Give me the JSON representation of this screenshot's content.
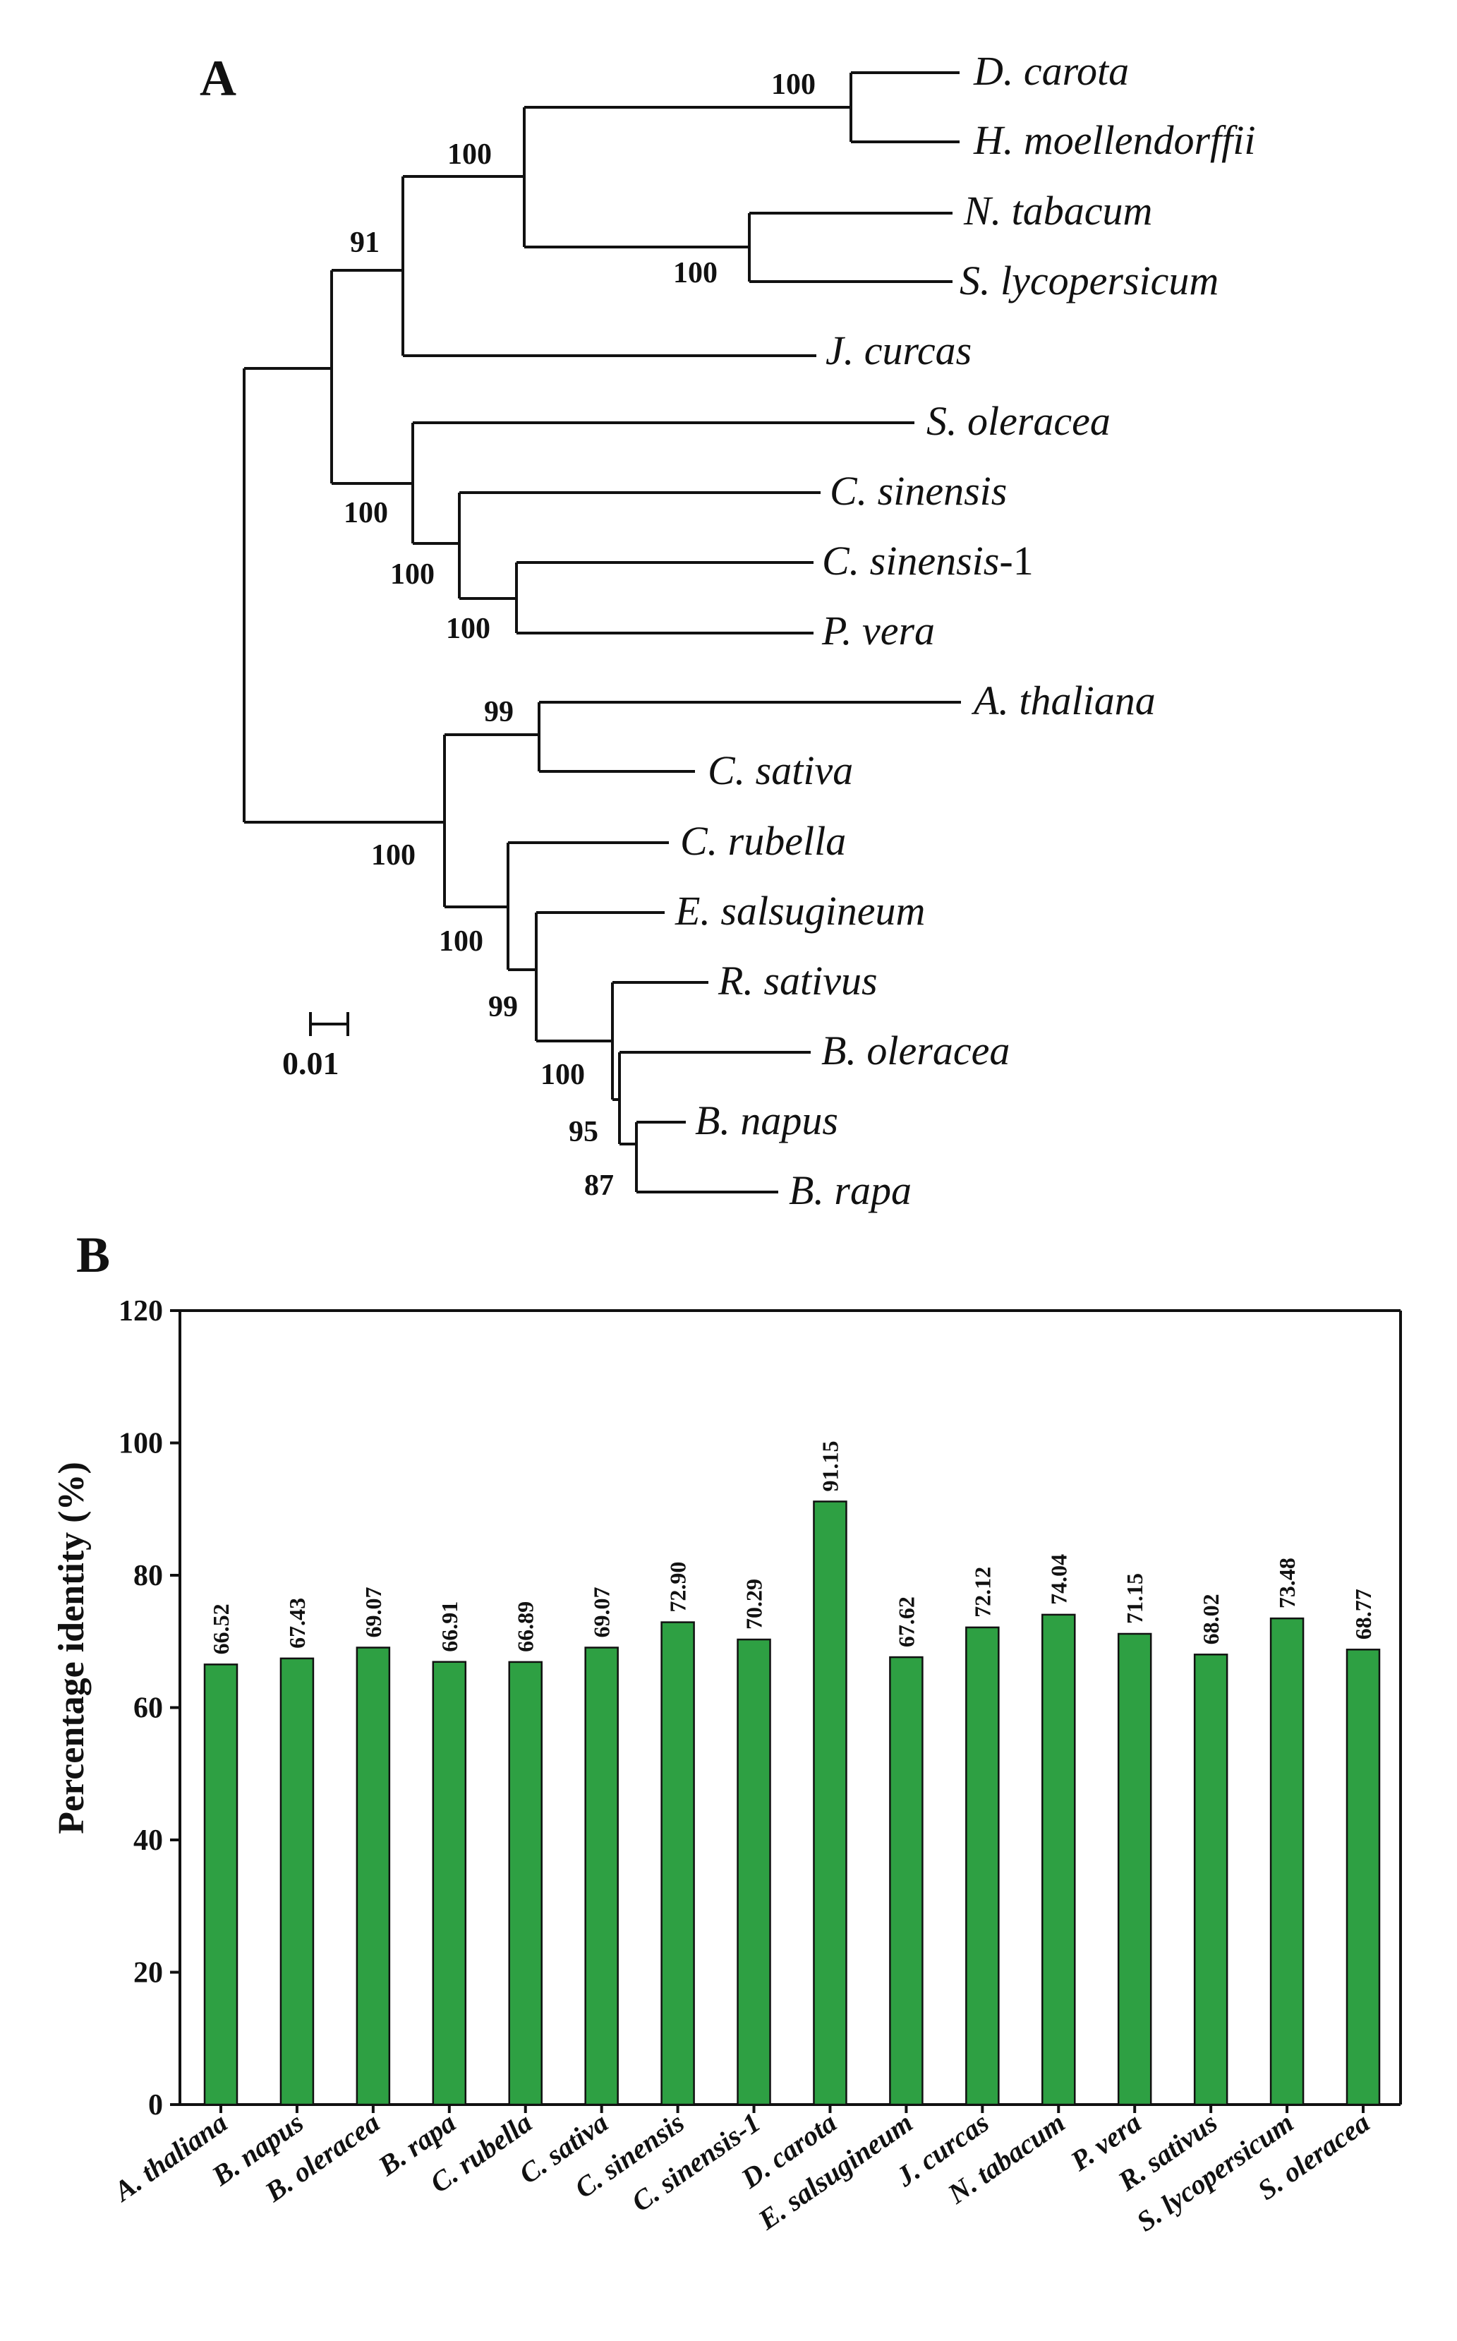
{
  "panel_a": {
    "label": "A",
    "scale_bar_label": "0.01",
    "taxa": [
      {
        "id": "dcar",
        "name": "D. carota",
        "suffix": ""
      },
      {
        "id": "hmoe",
        "name": "H. moellendorffii",
        "suffix": ""
      },
      {
        "id": "ntab",
        "name": "N.  tabacum",
        "suffix": ""
      },
      {
        "id": "slyc",
        "name": "S. lycopersicum",
        "suffix": ""
      },
      {
        "id": "jcur",
        "name": "J. curcas",
        "suffix": ""
      },
      {
        "id": "sole",
        "name": "S. oleracea",
        "suffix": ""
      },
      {
        "id": "csin",
        "name": "C. sinensis",
        "suffix": ""
      },
      {
        "id": "csin1",
        "name": "C. sinensis",
        "suffix": "-1"
      },
      {
        "id": "pver",
        "name": "P.  vera",
        "suffix": ""
      },
      {
        "id": "atha",
        "name": "A.  thaliana",
        "suffix": ""
      },
      {
        "id": "csat",
        "name": "C.  sativa",
        "suffix": ""
      },
      {
        "id": "crub",
        "name": "C. rubella",
        "suffix": ""
      },
      {
        "id": "esal",
        "name": "E. salsugineum",
        "suffix": ""
      },
      {
        "id": "rsat",
        "name": "R. sativus",
        "suffix": ""
      },
      {
        "id": "bole",
        "name": "B. oleracea",
        "suffix": ""
      },
      {
        "id": "bnap",
        "name": "B.  napus",
        "suffix": ""
      },
      {
        "id": "brap",
        "name": "B.  rapa",
        "suffix": ""
      }
    ],
    "bootstrap": [
      {
        "id": "n_dcar_hmoe",
        "value": "100"
      },
      {
        "id": "n_core",
        "value": "100"
      },
      {
        "id": "n_91",
        "value": "91"
      },
      {
        "id": "n_ntab_slyc",
        "value": "100"
      },
      {
        "id": "n_sole",
        "value": "100"
      },
      {
        "id": "n_csin",
        "value": "100"
      },
      {
        "id": "n_csin1_pver",
        "value": "100"
      },
      {
        "id": "n_atha_csat",
        "value": "99"
      },
      {
        "id": "n_bras",
        "value": "100"
      },
      {
        "id": "n_crub",
        "value": "100"
      },
      {
        "id": "n_esal",
        "value": "99"
      },
      {
        "id": "n_rsat",
        "value": "100"
      },
      {
        "id": "n_bole",
        "value": "95"
      },
      {
        "id": "n_bnap_brap",
        "value": "87"
      }
    ]
  },
  "panel_b": {
    "label": "B",
    "chart_data": {
      "type": "bar",
      "title": "",
      "xlabel": "",
      "ylabel": "Percentage identity (%)",
      "ylim": [
        0,
        120
      ],
      "yticks": [
        "0",
        "20",
        "40",
        "60",
        "80",
        "100",
        "120"
      ],
      "categories": [
        "A. thaliana",
        "B. napus",
        "B. oleracea",
        "B. rapa",
        "C. rubella",
        "C. sativa",
        "C. sinensis",
        "C. sinensis-1",
        "D. carota",
        "E. salsugineum",
        "J. curcas",
        "N. tabacum",
        "P. vera",
        "R. sativus",
        "S. lycopersicum",
        "S. oleracea"
      ],
      "values": [
        66.52,
        67.43,
        69.07,
        66.91,
        66.89,
        69.07,
        72.9,
        70.29,
        91.15,
        67.62,
        72.12,
        74.04,
        71.15,
        68.02,
        73.48,
        68.77
      ],
      "value_labels": [
        "66.52",
        "67.43",
        "69.07",
        "66.91",
        "66.89",
        "69.07",
        "72.90",
        "70.29",
        "91.15",
        "67.62",
        "72.12",
        "74.04",
        "71.15",
        "68.02",
        "73.48",
        "68.77"
      ],
      "bar_color": "#2ea043",
      "grid": false
    }
  }
}
